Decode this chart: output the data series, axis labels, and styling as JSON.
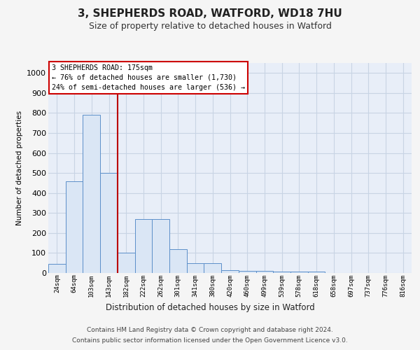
{
  "title": "3, SHEPHERDS ROAD, WATFORD, WD18 7HU",
  "subtitle": "Size of property relative to detached houses in Watford",
  "xlabel": "Distribution of detached houses by size in Watford",
  "ylabel": "Number of detached properties",
  "bar_labels": [
    "24sqm",
    "64sqm",
    "103sqm",
    "143sqm",
    "182sqm",
    "222sqm",
    "262sqm",
    "301sqm",
    "341sqm",
    "380sqm",
    "420sqm",
    "460sqm",
    "499sqm",
    "539sqm",
    "578sqm",
    "618sqm",
    "658sqm",
    "697sqm",
    "737sqm",
    "776sqm",
    "816sqm"
  ],
  "bar_values": [
    45,
    460,
    790,
    500,
    100,
    270,
    270,
    120,
    50,
    50,
    15,
    10,
    10,
    8,
    8,
    8,
    0,
    0,
    0,
    0,
    0
  ],
  "bar_color": "#dae6f5",
  "bar_edge_color": "#5b8fc9",
  "grid_color": "#c8d4e4",
  "annotation_line1": "3 SHEPHERDS ROAD: 175sqm",
  "annotation_line2": "← 76% of detached houses are smaller (1,730)",
  "annotation_line3": "24% of semi-detached houses are larger (536) →",
  "annotation_box_color": "#ffffff",
  "annotation_box_edge": "#cc0000",
  "vline_color": "#bb0000",
  "vline_x": 3.5,
  "ylim": [
    0,
    1050
  ],
  "yticks": [
    0,
    100,
    200,
    300,
    400,
    500,
    600,
    700,
    800,
    900,
    1000
  ],
  "footer_line1": "Contains HM Land Registry data © Crown copyright and database right 2024.",
  "footer_line2": "Contains public sector information licensed under the Open Government Licence v3.0.",
  "fig_bg_color": "#f5f5f5",
  "plot_bg_color": "#e8eef8"
}
